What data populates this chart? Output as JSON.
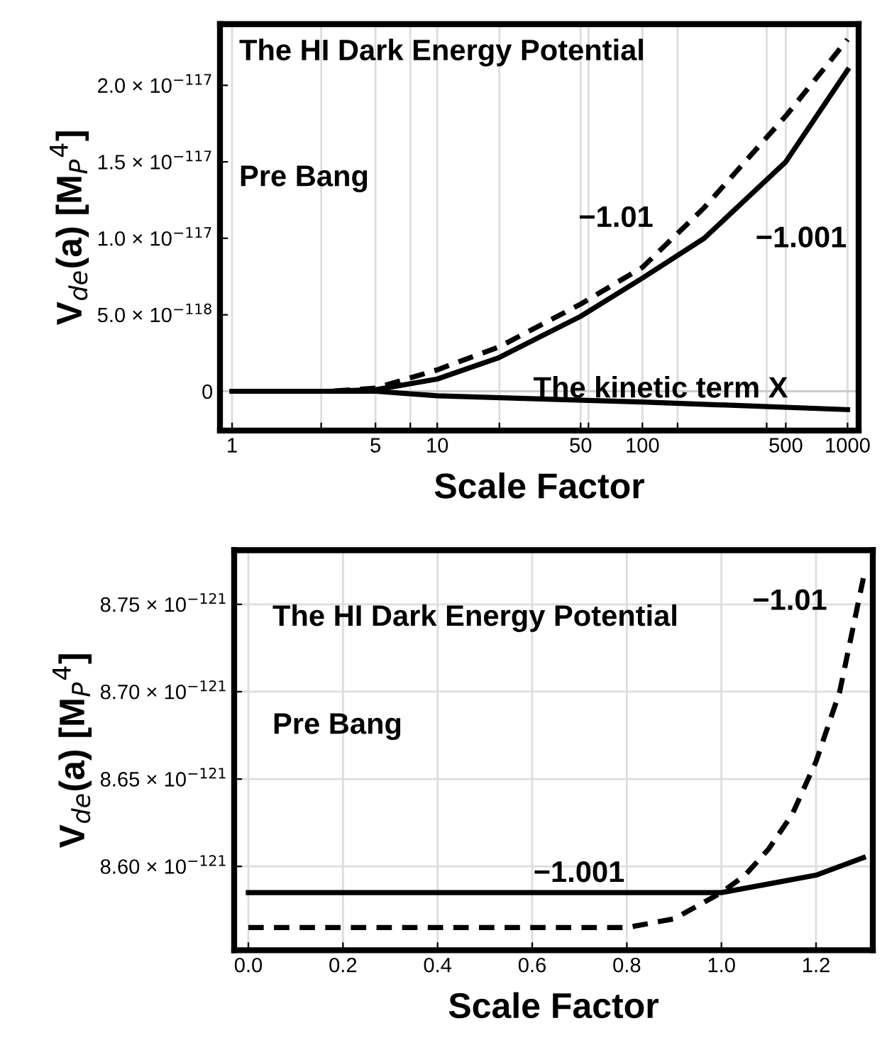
{
  "chart_data": [
    {
      "type": "line",
      "log": "x",
      "xlabel": "Scale Factor",
      "ylabel": "V$_{de}$(a) [M$_{P}$$^{4}$]",
      "xlim": [
        0.873,
        1132
      ],
      "ylim": [
        -2.565e-118,
        2.4e-117
      ],
      "xticks": [
        1,
        {
          "value": 2.718,
          "label": null
        },
        5,
        {
          "value": 7.389,
          "label": null
        },
        10,
        {
          "value": 20.09,
          "label": null
        },
        50,
        {
          "value": 54.6,
          "label": null
        },
        100,
        {
          "value": 148.4,
          "label": null
        },
        500,
        {
          "value": 403.4,
          "label": null
        },
        1000
      ],
      "yticks": [
        0,
        {
          "value": 5e-118,
          "label": "5.0 × 10$^{−118}$"
        },
        {
          "value": 1e-117,
          "label": "1.0 × 10$^{−117}$"
        },
        {
          "value": 1.5e-117,
          "label": "1.5 × 10$^{−117}$"
        },
        {
          "value": 2e-117,
          "label": "2.0 × 10$^{−117}$"
        }
      ],
      "grid": "x",
      "ref_lines": [
        {
          "axis": "y",
          "value": 0,
          "color": "#cccccc"
        }
      ],
      "series": [
        {
          "color": "#000000",
          "line_style": "dashed",
          "x": [
            1,
            2,
            3,
            5,
            10,
            20,
            50,
            100,
            200,
            500,
            1000
          ],
          "values": [
            0,
            0,
            0,
            2e-119,
            1.4e-118,
            2.9e-118,
            5.7e-118,
            8.1e-118,
            1.2e-117,
            1.8e-117,
            2.3e-117
          ]
        },
        {
          "color": "#000000",
          "line_style": "solid",
          "x": [
            1,
            2,
            3,
            5,
            10,
            20,
            50,
            100,
            200,
            500,
            1000
          ],
          "values": [
            0,
            0,
            0,
            1e-119,
            8e-119,
            2.2e-118,
            4.9e-118,
            7.4e-118,
            1e-117,
            1.5e-117,
            2.1e-117
          ]
        },
        {
          "color": "#000000",
          "line_style": "solid",
          "x": [
            1,
            3,
            5,
            10,
            100,
            1000
          ],
          "values": [
            0,
            0,
            0,
            -3e-119,
            -7e-119,
            -1.2e-118
          ]
        }
      ],
      "annotations": [
        "The HI Dark Energy Potential",
        "Pre Bang",
        "−1.01",
        "−1.001",
        "The kinetic term X"
      ]
    },
    {
      "type": "line",
      "xlabel": "Scale Factor",
      "ylabel": "V$_{de}$(a) [M$_{P}$$^{4}$]",
      "xlim": [
        -0.03,
        1.32
      ],
      "ylim": [
        8.552e-121,
        8.781e-121
      ],
      "xticks": [
        {
          "value": 0,
          "label": "0.0"
        },
        0.2,
        0.4,
        0.6,
        0.8,
        {
          "value": 1,
          "label": "1.0"
        },
        1.2
      ],
      "yticks": [
        {
          "value": 8.6e-121,
          "label": "8.60 × 10$^{−121}$"
        },
        {
          "value": 8.65e-121,
          "label": "8.65 × 10$^{−121}$"
        },
        {
          "value": 8.7e-121,
          "label": "8.70 × 10$^{−121}$"
        },
        {
          "value": 8.75e-121,
          "label": "8.75 × 10$^{−121}$"
        }
      ],
      "grid": true,
      "series": [
        {
          "color": "#000000",
          "line_style": "dashed",
          "x": [
            0,
            0.7,
            0.8,
            0.9,
            1.0,
            1.05,
            1.1,
            1.15,
            1.2,
            1.25,
            1.3
          ],
          "values": [
            8.565e-121,
            8.565e-121,
            8.565e-121,
            8.57e-121,
            8.585e-121,
            8.595e-121,
            8.61e-121,
            8.63e-121,
            8.66e-121,
            8.7e-121,
            8.765e-121
          ]
        },
        {
          "color": "#000000",
          "line_style": "solid",
          "x": [
            0,
            0.9,
            1.0,
            1.1,
            1.2,
            1.3
          ],
          "values": [
            8.585e-121,
            8.585e-121,
            8.585e-121,
            8.59e-121,
            8.595e-121,
            8.605e-121
          ]
        }
      ],
      "annotations": [
        "The HI Dark Energy Potential",
        "Pre Bang",
        "−1.01",
        "−1.001"
      ]
    }
  ]
}
